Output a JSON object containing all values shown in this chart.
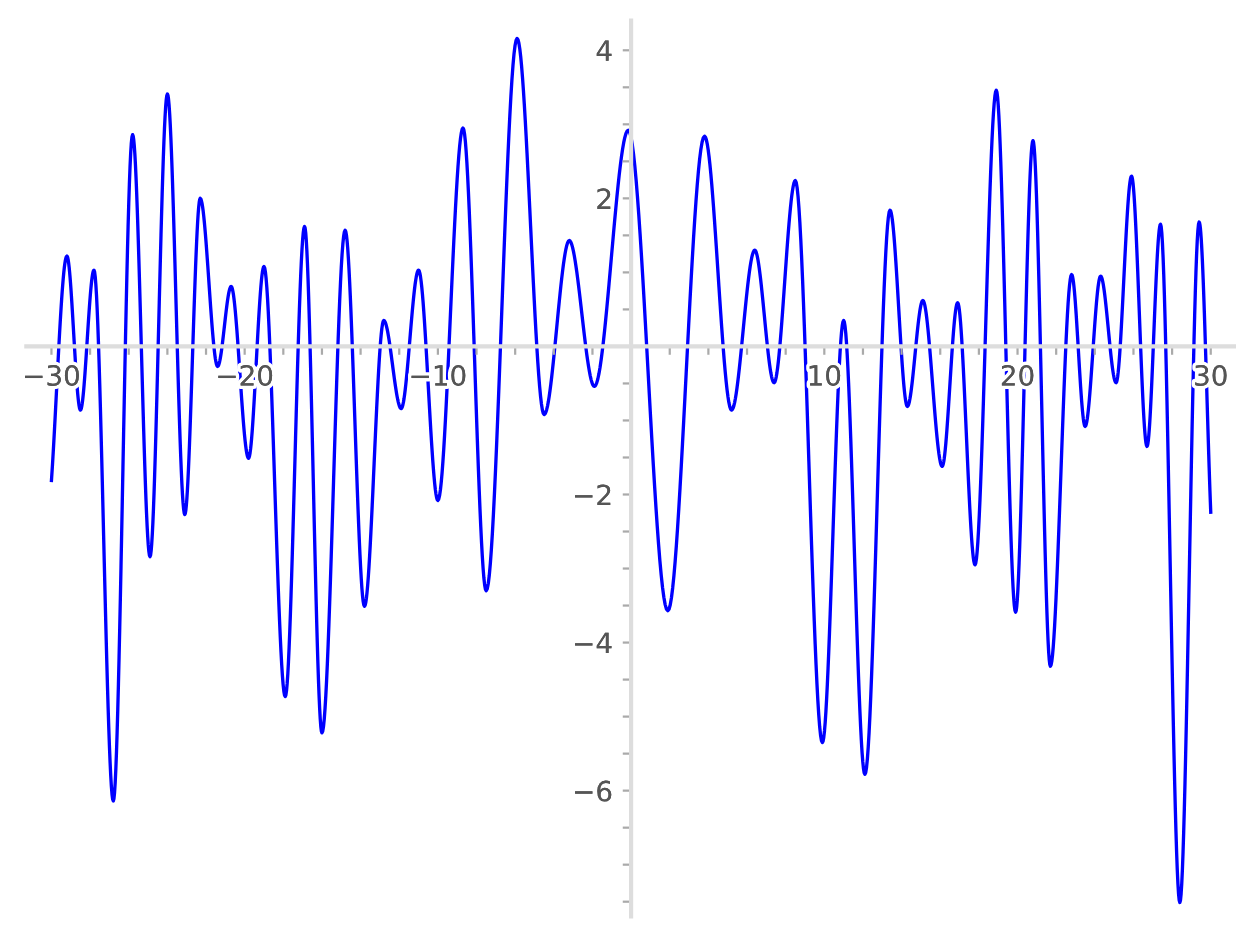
{
  "chart_data": {
    "type": "line",
    "x": [
      -30,
      -29.2,
      -28.5,
      -27.8,
      -26.8,
      -25.8,
      -24.9,
      -24.0,
      -23.1,
      -22.3,
      -21.4,
      -20.7,
      -19.8,
      -19.0,
      -17.9,
      -16.9,
      -16.0,
      -14.8,
      -13.8,
      -12.8,
      -11.9,
      -11.0,
      -10.0,
      -8.7,
      -7.5,
      -5.9,
      -4.5,
      -3.2,
      -1.9,
      -0.15,
      1.9,
      3.8,
      5.2,
      6.4,
      7.4,
      8.5,
      9.9,
      11.0,
      12.1,
      13.4,
      14.3,
      15.1,
      16.1,
      16.9,
      17.8,
      18.9,
      19.9,
      20.8,
      21.7,
      22.8,
      23.5,
      24.3,
      25.1,
      25.9,
      26.7,
      27.4,
      28.4,
      29.4,
      30
    ],
    "series": [
      {
        "color": "#0000ff",
        "values": [
          -1.81,
          1.22,
          -0.86,
          1.03,
          -6.14,
          2.86,
          -2.84,
          3.41,
          -2.27,
          2.0,
          -0.27,
          0.81,
          -1.51,
          1.08,
          -4.73,
          1.62,
          -5.22,
          1.57,
          -3.51,
          0.35,
          -0.84,
          1.03,
          -2.08,
          2.95,
          -3.3,
          4.16,
          -0.92,
          1.43,
          -0.54,
          2.92,
          -3.57,
          2.84,
          -0.86,
          1.3,
          -0.49,
          2.24,
          -5.35,
          0.35,
          -5.78,
          1.84,
          -0.81,
          0.62,
          -1.62,
          0.59,
          -2.95,
          3.46,
          -3.59,
          2.78,
          -4.32,
          0.97,
          -1.08,
          0.95,
          -0.49,
          2.3,
          -1.35,
          1.65,
          -7.51,
          1.68,
          -2.24
        ]
      }
    ],
    "xlim": [
      -31.3,
      31.2
    ],
    "ylim": [
      -7.7,
      4.4
    ],
    "xticks": [
      {
        "value": -30,
        "label": "−30"
      },
      {
        "value": -28,
        "label": null
      },
      {
        "value": -26,
        "label": null
      },
      {
        "value": -24,
        "label": null
      },
      {
        "value": -22,
        "label": null
      },
      {
        "value": -20,
        "label": "−20"
      },
      {
        "value": -18,
        "label": null
      },
      {
        "value": -16,
        "label": null
      },
      {
        "value": -14,
        "label": null
      },
      {
        "value": -12,
        "label": null
      },
      {
        "value": -10,
        "label": "−10"
      },
      {
        "value": -8,
        "label": null
      },
      {
        "value": -6,
        "label": null
      },
      {
        "value": -4,
        "label": null
      },
      {
        "value": -2,
        "label": null
      },
      {
        "value": 2,
        "label": null
      },
      {
        "value": 4,
        "label": null
      },
      {
        "value": 6,
        "label": null
      },
      {
        "value": 8,
        "label": null
      },
      10,
      {
        "value": 12,
        "label": null
      },
      {
        "value": 14,
        "label": null
      },
      {
        "value": 16,
        "label": null
      },
      {
        "value": 18,
        "label": null
      },
      20,
      {
        "value": 22,
        "label": null
      },
      {
        "value": 24,
        "label": null
      },
      {
        "value": 26,
        "label": null
      },
      {
        "value": 28,
        "label": null
      },
      30
    ],
    "yticks": [
      {
        "value": -7.5,
        "label": null
      },
      {
        "value": -7,
        "label": null
      },
      {
        "value": -6.5,
        "label": null
      },
      {
        "value": -6,
        "label": "−6"
      },
      {
        "value": -5.5,
        "label": null
      },
      {
        "value": -5,
        "label": null
      },
      {
        "value": -4.5,
        "label": null
      },
      {
        "value": -4,
        "label": "−4"
      },
      {
        "value": -3.5,
        "label": null
      },
      {
        "value": -3,
        "label": null
      },
      {
        "value": -2.5,
        "label": null
      },
      {
        "value": -2,
        "label": "−2"
      },
      {
        "value": -1.5,
        "label": null
      },
      {
        "value": -1,
        "label": null
      },
      {
        "value": -0.5,
        "label": null
      },
      {
        "value": 0.5,
        "label": null
      },
      {
        "value": 1,
        "label": null
      },
      {
        "value": 1.5,
        "label": null
      },
      2,
      {
        "value": 2.5,
        "label": null
      },
      {
        "value": 3,
        "label": null
      },
      {
        "value": 3.5,
        "label": null
      },
      4
    ],
    "grid": false,
    "marker": "none",
    "line_style": "solid"
  }
}
